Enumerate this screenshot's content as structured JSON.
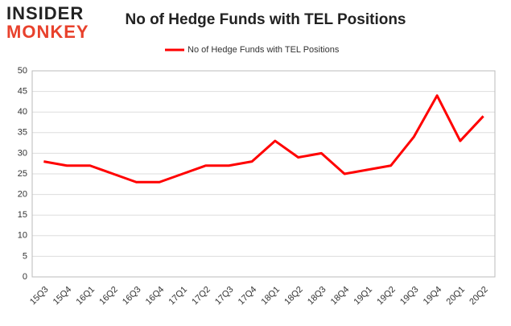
{
  "logo": {
    "line1": "INSIDER",
    "line2": "MONKEY"
  },
  "chart_data": {
    "type": "line",
    "title": "No of Hedge Funds with TEL Positions",
    "categories": [
      "15Q3",
      "15Q4",
      "16Q1",
      "16Q2",
      "16Q3",
      "16Q4",
      "17Q1",
      "17Q2",
      "17Q3",
      "17Q4",
      "18Q1",
      "18Q2",
      "18Q3",
      "18Q4",
      "19Q1",
      "19Q2",
      "19Q3",
      "19Q4",
      "20Q1",
      "20Q2"
    ],
    "series": [
      {
        "name": "No of Hedge Funds with TEL Positions",
        "color": "#ff0000",
        "values": [
          28,
          27,
          27,
          25,
          23,
          23,
          25,
          27,
          27,
          28,
          33,
          29,
          30,
          25,
          26,
          27,
          34,
          44,
          33,
          39
        ]
      }
    ],
    "ylim": [
      0,
      50
    ],
    "yticks": [
      0,
      5,
      10,
      15,
      20,
      25,
      30,
      35,
      40,
      45,
      50
    ],
    "grid": true,
    "legend": "top"
  }
}
